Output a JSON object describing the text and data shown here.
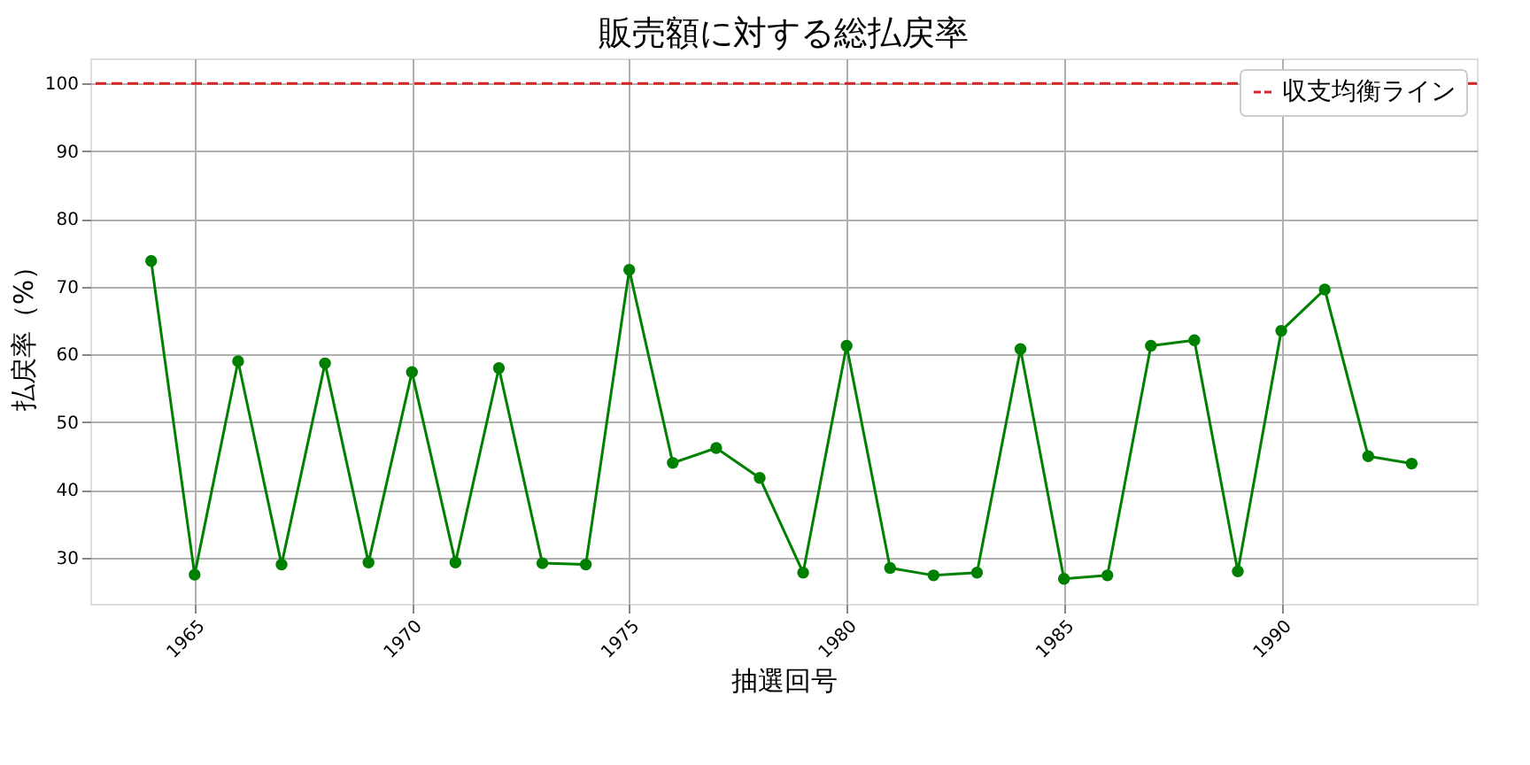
{
  "chart_data": {
    "type": "line",
    "title": "販売額に対する総払戻率",
    "xlabel": "抽選回号",
    "ylabel": "払戻率（%）",
    "x": [
      1964,
      1965,
      1966,
      1967,
      1968,
      1969,
      1970,
      1971,
      1972,
      1973,
      1974,
      1975,
      1976,
      1977,
      1978,
      1979,
      1980,
      1981,
      1982,
      1983,
      1984,
      1985,
      1986,
      1987,
      1988,
      1989,
      1990,
      1991,
      1992,
      1993
    ],
    "series": [
      {
        "color": "#008000",
        "values": [
          73.8,
          27.5,
          59,
          29,
          58.7,
          29.3,
          57.4,
          29.3,
          58,
          29.2,
          29,
          72.5,
          44,
          46.2,
          41.8,
          27.8,
          61.3,
          28.5,
          27.4,
          27.8,
          60.8,
          26.9,
          27.4,
          61.3,
          62.1,
          28,
          63.5,
          69.6,
          45,
          43.9
        ]
      }
    ],
    "xlim": [
      1962.6,
      1994.5
    ],
    "xticks": [
      1965,
      1970,
      1975,
      1980,
      1985,
      1990
    ],
    "ylim": [
      23.2,
      103.7
    ],
    "yticks": [
      30,
      40,
      50,
      60,
      70,
      80,
      90,
      100
    ],
    "ref_lines": [
      {
        "axis": "y",
        "value": 100,
        "label": "収支均衡ライン",
        "color": "#d62728",
        "line_style": "dashed"
      }
    ],
    "grid": true,
    "legend": "top right",
    "marker": "circle",
    "line_style": "solid"
  }
}
